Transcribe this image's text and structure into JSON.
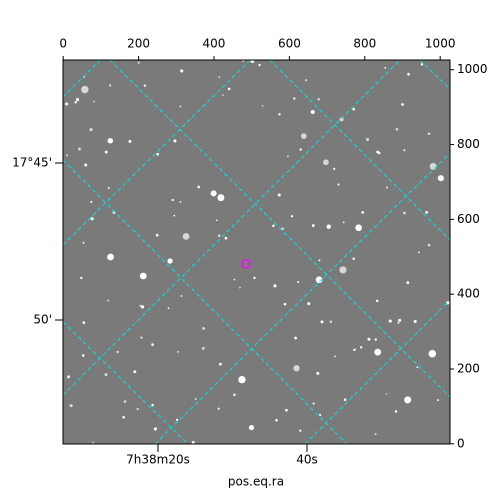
{
  "chart_data": {
    "type": "image",
    "xlabel": "pos.eq.ra",
    "xlim": [
      -0.5,
      1026
    ],
    "ylim": [
      -0.5,
      1026
    ],
    "xticks": [
      0,
      200,
      400,
      600,
      800,
      1000
    ],
    "yticks": [
      0,
      200,
      400,
      600,
      800,
      1000
    ],
    "ra_labels": [
      "7h38m20s",
      "40s"
    ],
    "dec_labels": [
      "17°45'",
      "50'"
    ],
    "grid_color": "#00e5e5",
    "marker": {
      "x": 485,
      "y": 481,
      "color": "#ff00ff"
    }
  }
}
